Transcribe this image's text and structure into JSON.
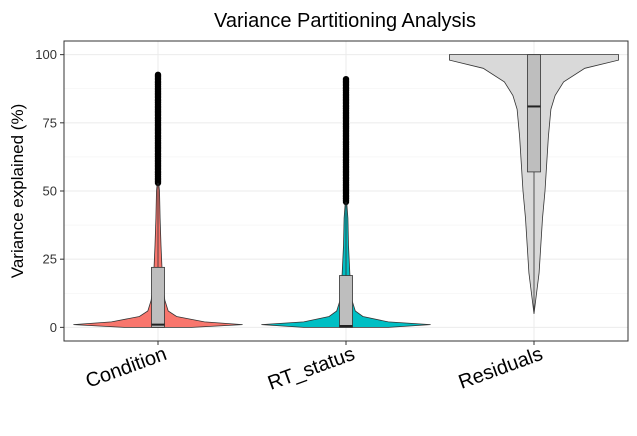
{
  "chart_data": {
    "type": "violin",
    "title": "Variance Partitioning Analysis",
    "xlabel": "",
    "ylabel": "Variance explained (%)",
    "ylim": [
      -5,
      105
    ],
    "yticks": [
      0,
      25,
      50,
      75,
      100
    ],
    "grid": true,
    "legend": "none",
    "categories": [
      "Condition",
      "RT_status",
      "Residuals"
    ],
    "colors": [
      "#F8766D",
      "#00BFC4",
      "#D9D9D9"
    ],
    "box_color": "#BEBEBE",
    "series": [
      {
        "category": "Condition",
        "box": {
          "q1": 0,
          "median": 1,
          "q3": 22,
          "whisker_low": 0,
          "whisker_high": 53
        },
        "outlier_range": [
          53,
          93
        ],
        "violin_profile": [
          [
            0,
            0.4
          ],
          [
            1,
            1.0
          ],
          [
            2,
            0.55
          ],
          [
            4,
            0.22
          ],
          [
            6,
            0.12
          ],
          [
            10,
            0.08
          ],
          [
            15,
            0.06
          ],
          [
            20,
            0.05
          ],
          [
            30,
            0.035
          ],
          [
            40,
            0.025
          ],
          [
            50,
            0.018
          ],
          [
            53,
            0.008
          ]
        ]
      },
      {
        "category": "RT_status",
        "box": {
          "q1": 0,
          "median": 0.5,
          "q3": 19,
          "whisker_low": 0,
          "whisker_high": 46
        },
        "outlier_range": [
          46,
          91
        ],
        "violin_profile": [
          [
            0,
            0.5
          ],
          [
            1,
            1.0
          ],
          [
            2,
            0.5
          ],
          [
            4,
            0.2
          ],
          [
            6,
            0.11
          ],
          [
            10,
            0.07
          ],
          [
            15,
            0.055
          ],
          [
            20,
            0.045
          ],
          [
            30,
            0.03
          ],
          [
            40,
            0.022
          ],
          [
            46,
            0.008
          ]
        ]
      },
      {
        "category": "Residuals",
        "box": {
          "q1": 57,
          "median": 81,
          "q3": 100,
          "whisker_low": 5,
          "whisker_high": 100
        },
        "outlier_range": [],
        "violin_profile": [
          [
            5,
            0.0
          ],
          [
            10,
            0.02
          ],
          [
            15,
            0.04
          ],
          [
            20,
            0.06
          ],
          [
            30,
            0.08
          ],
          [
            40,
            0.1
          ],
          [
            50,
            0.13
          ],
          [
            60,
            0.15
          ],
          [
            70,
            0.17
          ],
          [
            80,
            0.2
          ],
          [
            85,
            0.25
          ],
          [
            90,
            0.35
          ],
          [
            95,
            0.6
          ],
          [
            98,
            1.0
          ],
          [
            100,
            1.0
          ]
        ]
      }
    ]
  }
}
